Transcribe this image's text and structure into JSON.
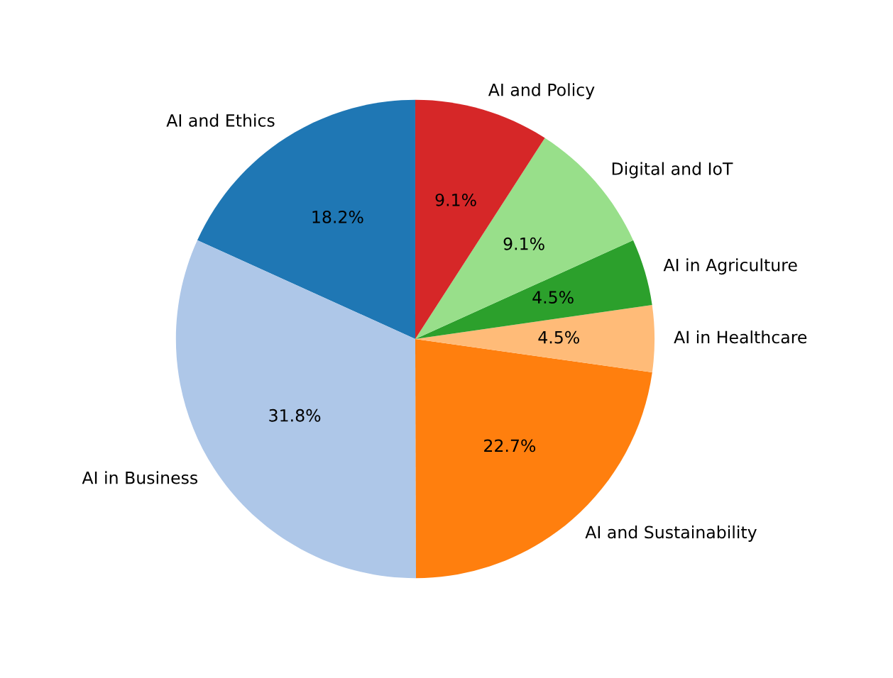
{
  "chart_data": {
    "type": "pie",
    "categories": [
      "AI and Ethics",
      "AI in Business",
      "AI and Sustainability",
      "AI in Healthcare",
      "AI in Agriculture",
      "Digital and IoT",
      "AI and Policy"
    ],
    "values": [
      18.2,
      31.8,
      22.7,
      4.5,
      4.5,
      9.1,
      9.1
    ],
    "colors": [
      "#1f77b4",
      "#aec7e8",
      "#ff7f0e",
      "#ffbb78",
      "#2ca02c",
      "#98df8a",
      "#d62728"
    ],
    "value_labels": [
      "18.2%",
      "31.8%",
      "22.7%",
      "4.5%",
      "4.5%",
      "9.1%",
      "9.1%"
    ]
  }
}
